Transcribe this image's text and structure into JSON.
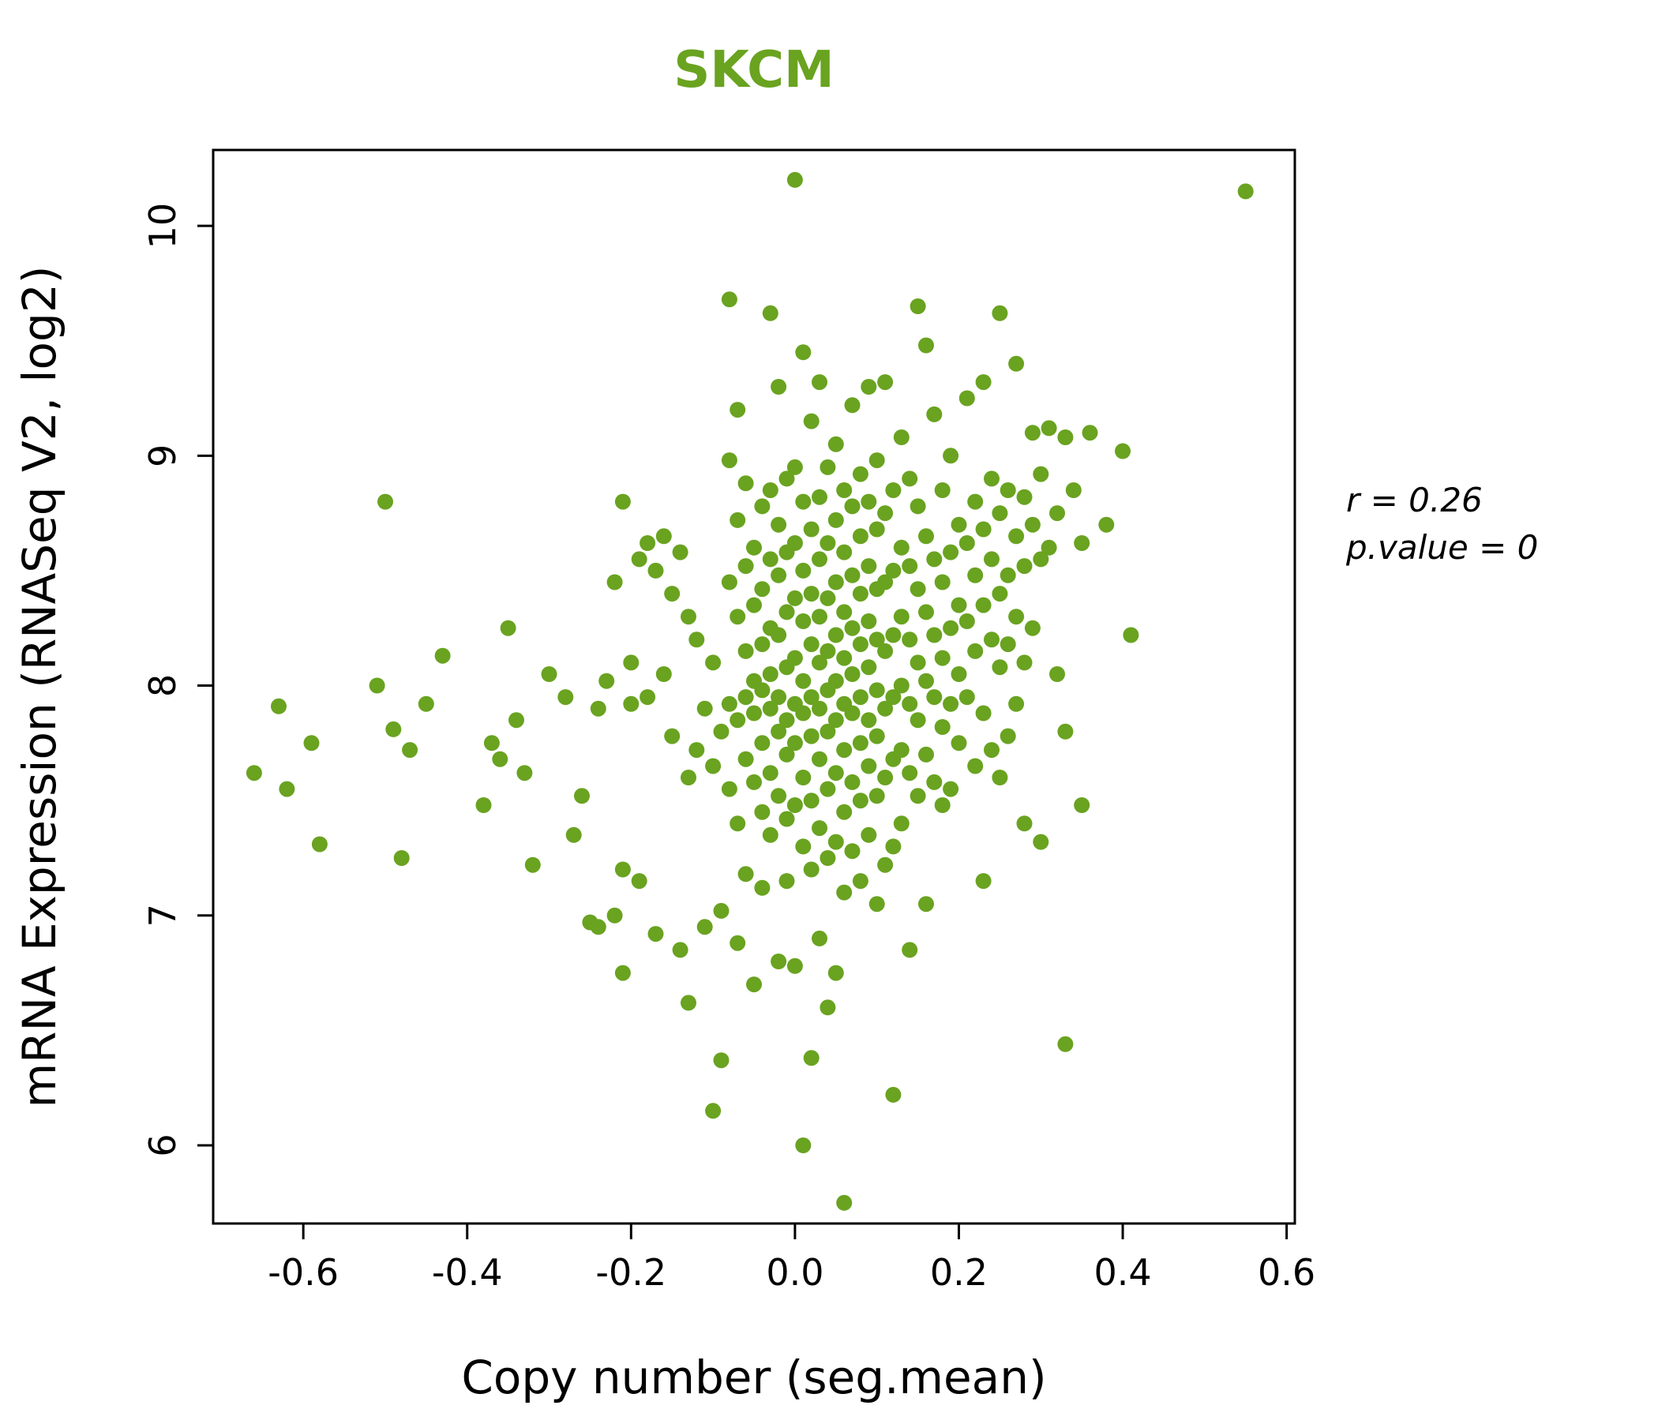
{
  "title": "SKCM",
  "annotation": {
    "line1": "r = 0.26",
    "line2": "p.value = 0"
  },
  "chart_data": {
    "type": "scatter",
    "title": "SKCM",
    "xlabel": "Copy number (seg.mean)",
    "ylabel": "mRNA Expression (RNASeq V2, log2)",
    "xlim": [
      -0.71,
      0.61
    ],
    "ylim": [
      5.66,
      10.33
    ],
    "xticks": [
      -0.6,
      -0.4,
      -0.2,
      0.0,
      0.2,
      0.4,
      0.6
    ],
    "xtick_labels": [
      "-0.6",
      "-0.4",
      "-0.2",
      "0.0",
      "0.2",
      "0.4",
      "0.6"
    ],
    "yticks": [
      6,
      7,
      8,
      9,
      10
    ],
    "ytick_labels": [
      "6",
      "7",
      "8",
      "9",
      "10"
    ],
    "point_color": "#69A320",
    "title_color": "#69A320",
    "grid": false,
    "legend": "none",
    "correlation": {
      "r": 0.26,
      "p_value": 0
    },
    "points": [
      [
        -0.66,
        7.62
      ],
      [
        -0.63,
        7.91
      ],
      [
        -0.62,
        7.55
      ],
      [
        -0.59,
        7.75
      ],
      [
        -0.58,
        7.31
      ],
      [
        -0.51,
        8.0
      ],
      [
        -0.5,
        8.8
      ],
      [
        -0.49,
        7.81
      ],
      [
        -0.48,
        7.25
      ],
      [
        -0.47,
        7.72
      ],
      [
        -0.45,
        7.92
      ],
      [
        -0.43,
        8.13
      ],
      [
        -0.38,
        7.48
      ],
      [
        -0.37,
        7.75
      ],
      [
        -0.36,
        7.68
      ],
      [
        -0.35,
        8.25
      ],
      [
        -0.34,
        7.85
      ],
      [
        -0.33,
        7.62
      ],
      [
        -0.32,
        7.22
      ],
      [
        -0.3,
        8.05
      ],
      [
        -0.28,
        7.95
      ],
      [
        -0.27,
        7.35
      ],
      [
        -0.26,
        7.52
      ],
      [
        -0.25,
        6.97
      ],
      [
        -0.24,
        7.9
      ],
      [
        -0.24,
        6.95
      ],
      [
        -0.23,
        8.02
      ],
      [
        -0.22,
        7.0
      ],
      [
        -0.22,
        8.45
      ],
      [
        -0.21,
        8.8
      ],
      [
        -0.21,
        7.2
      ],
      [
        -0.21,
        6.75
      ],
      [
        -0.2,
        8.1
      ],
      [
        -0.2,
        7.92
      ],
      [
        -0.19,
        8.55
      ],
      [
        -0.19,
        7.15
      ],
      [
        -0.18,
        8.62
      ],
      [
        -0.18,
        7.95
      ],
      [
        -0.17,
        8.5
      ],
      [
        -0.17,
        6.92
      ],
      [
        -0.16,
        8.65
      ],
      [
        -0.16,
        8.05
      ],
      [
        -0.15,
        8.4
      ],
      [
        -0.15,
        7.78
      ],
      [
        -0.14,
        8.58
      ],
      [
        -0.14,
        6.85
      ],
      [
        -0.13,
        8.3
      ],
      [
        -0.13,
        7.6
      ],
      [
        -0.13,
        6.62
      ],
      [
        -0.12,
        8.2
      ],
      [
        -0.12,
        7.72
      ],
      [
        -0.11,
        7.9
      ],
      [
        -0.11,
        6.95
      ],
      [
        -0.1,
        8.1
      ],
      [
        -0.1,
        7.65
      ],
      [
        -0.1,
        6.15
      ],
      [
        -0.09,
        7.8
      ],
      [
        -0.09,
        7.02
      ],
      [
        -0.09,
        6.37
      ],
      [
        -0.08,
        9.68
      ],
      [
        -0.08,
        8.98
      ],
      [
        -0.08,
        8.45
      ],
      [
        -0.08,
        7.92
      ],
      [
        -0.08,
        7.55
      ],
      [
        -0.07,
        9.2
      ],
      [
        -0.07,
        8.72
      ],
      [
        -0.07,
        8.3
      ],
      [
        -0.07,
        7.85
      ],
      [
        -0.07,
        7.4
      ],
      [
        -0.07,
        6.88
      ],
      [
        -0.06,
        8.88
      ],
      [
        -0.06,
        8.52
      ],
      [
        -0.06,
        8.15
      ],
      [
        -0.06,
        7.95
      ],
      [
        -0.06,
        7.68
      ],
      [
        -0.06,
        7.18
      ],
      [
        -0.05,
        8.6
      ],
      [
        -0.05,
        8.35
      ],
      [
        -0.05,
        8.02
      ],
      [
        -0.05,
        7.88
      ],
      [
        -0.05,
        7.58
      ],
      [
        -0.05,
        6.7
      ],
      [
        -0.04,
        8.78
      ],
      [
        -0.04,
        8.42
      ],
      [
        -0.04,
        8.18
      ],
      [
        -0.04,
        7.98
      ],
      [
        -0.04,
        7.75
      ],
      [
        -0.04,
        7.45
      ],
      [
        -0.04,
        7.12
      ],
      [
        -0.03,
        9.62
      ],
      [
        -0.03,
        8.85
      ],
      [
        -0.03,
        8.55
      ],
      [
        -0.03,
        8.25
      ],
      [
        -0.03,
        8.05
      ],
      [
        -0.03,
        7.9
      ],
      [
        -0.03,
        7.62
      ],
      [
        -0.03,
        7.35
      ],
      [
        -0.02,
        9.3
      ],
      [
        -0.02,
        8.7
      ],
      [
        -0.02,
        8.48
      ],
      [
        -0.02,
        8.22
      ],
      [
        -0.02,
        7.95
      ],
      [
        -0.02,
        7.8
      ],
      [
        -0.02,
        7.52
      ],
      [
        -0.02,
        6.8
      ],
      [
        -0.01,
        8.9
      ],
      [
        -0.01,
        8.58
      ],
      [
        -0.01,
        8.32
      ],
      [
        -0.01,
        8.08
      ],
      [
        -0.01,
        7.85
      ],
      [
        -0.01,
        7.7
      ],
      [
        -0.01,
        7.42
      ],
      [
        -0.01,
        7.15
      ],
      [
        0.0,
        10.2
      ],
      [
        0.0,
        8.95
      ],
      [
        0.0,
        8.62
      ],
      [
        0.0,
        8.38
      ],
      [
        0.0,
        8.12
      ],
      [
        0.0,
        7.92
      ],
      [
        0.0,
        7.75
      ],
      [
        0.0,
        7.48
      ],
      [
        0.0,
        6.78
      ],
      [
        0.01,
        9.45
      ],
      [
        0.01,
        8.8
      ],
      [
        0.01,
        8.5
      ],
      [
        0.01,
        8.28
      ],
      [
        0.01,
        8.02
      ],
      [
        0.01,
        7.88
      ],
      [
        0.01,
        7.6
      ],
      [
        0.01,
        7.3
      ],
      [
        0.01,
        6.0
      ],
      [
        0.02,
        9.15
      ],
      [
        0.02,
        8.68
      ],
      [
        0.02,
        8.4
      ],
      [
        0.02,
        8.18
      ],
      [
        0.02,
        7.95
      ],
      [
        0.02,
        7.78
      ],
      [
        0.02,
        7.5
      ],
      [
        0.02,
        7.2
      ],
      [
        0.02,
        6.38
      ],
      [
        0.03,
        9.32
      ],
      [
        0.03,
        8.82
      ],
      [
        0.03,
        8.55
      ],
      [
        0.03,
        8.3
      ],
      [
        0.03,
        8.1
      ],
      [
        0.03,
        7.9
      ],
      [
        0.03,
        7.68
      ],
      [
        0.03,
        7.38
      ],
      [
        0.03,
        6.9
      ],
      [
        0.04,
        8.95
      ],
      [
        0.04,
        8.62
      ],
      [
        0.04,
        8.38
      ],
      [
        0.04,
        8.15
      ],
      [
        0.04,
        7.98
      ],
      [
        0.04,
        7.8
      ],
      [
        0.04,
        7.55
      ],
      [
        0.04,
        7.25
      ],
      [
        0.04,
        6.6
      ],
      [
        0.05,
        9.05
      ],
      [
        0.05,
        8.72
      ],
      [
        0.05,
        8.45
      ],
      [
        0.05,
        8.22
      ],
      [
        0.05,
        8.02
      ],
      [
        0.05,
        7.85
      ],
      [
        0.05,
        7.62
      ],
      [
        0.05,
        7.32
      ],
      [
        0.05,
        6.75
      ],
      [
        0.06,
        8.85
      ],
      [
        0.06,
        8.58
      ],
      [
        0.06,
        8.32
      ],
      [
        0.06,
        8.12
      ],
      [
        0.06,
        7.92
      ],
      [
        0.06,
        7.72
      ],
      [
        0.06,
        7.45
      ],
      [
        0.06,
        7.1
      ],
      [
        0.06,
        5.75
      ],
      [
        0.07,
        9.22
      ],
      [
        0.07,
        8.78
      ],
      [
        0.07,
        8.48
      ],
      [
        0.07,
        8.25
      ],
      [
        0.07,
        8.05
      ],
      [
        0.07,
        7.88
      ],
      [
        0.07,
        7.58
      ],
      [
        0.07,
        7.28
      ],
      [
        0.08,
        8.92
      ],
      [
        0.08,
        8.65
      ],
      [
        0.08,
        8.4
      ],
      [
        0.08,
        8.18
      ],
      [
        0.08,
        7.95
      ],
      [
        0.08,
        7.75
      ],
      [
        0.08,
        7.5
      ],
      [
        0.08,
        7.15
      ],
      [
        0.09,
        9.3
      ],
      [
        0.09,
        8.8
      ],
      [
        0.09,
        8.52
      ],
      [
        0.09,
        8.28
      ],
      [
        0.09,
        8.08
      ],
      [
        0.09,
        7.85
      ],
      [
        0.09,
        7.65
      ],
      [
        0.09,
        7.35
      ],
      [
        0.1,
        8.98
      ],
      [
        0.1,
        8.68
      ],
      [
        0.1,
        8.42
      ],
      [
        0.1,
        8.2
      ],
      [
        0.1,
        7.98
      ],
      [
        0.1,
        7.78
      ],
      [
        0.1,
        7.52
      ],
      [
        0.1,
        7.05
      ],
      [
        0.11,
        9.32
      ],
      [
        0.11,
        8.75
      ],
      [
        0.11,
        8.45
      ],
      [
        0.11,
        8.15
      ],
      [
        0.11,
        7.9
      ],
      [
        0.11,
        7.6
      ],
      [
        0.11,
        7.22
      ],
      [
        0.12,
        8.85
      ],
      [
        0.12,
        8.5
      ],
      [
        0.12,
        8.22
      ],
      [
        0.12,
        7.95
      ],
      [
        0.12,
        7.68
      ],
      [
        0.12,
        7.3
      ],
      [
        0.12,
        6.22
      ],
      [
        0.13,
        9.08
      ],
      [
        0.13,
        8.6
      ],
      [
        0.13,
        8.3
      ],
      [
        0.13,
        8.0
      ],
      [
        0.13,
        7.72
      ],
      [
        0.13,
        7.4
      ],
      [
        0.14,
        8.9
      ],
      [
        0.14,
        8.52
      ],
      [
        0.14,
        8.2
      ],
      [
        0.14,
        7.92
      ],
      [
        0.14,
        7.62
      ],
      [
        0.14,
        6.85
      ],
      [
        0.15,
        9.65
      ],
      [
        0.15,
        8.78
      ],
      [
        0.15,
        8.42
      ],
      [
        0.15,
        8.1
      ],
      [
        0.15,
        7.85
      ],
      [
        0.15,
        7.52
      ],
      [
        0.16,
        9.48
      ],
      [
        0.16,
        8.65
      ],
      [
        0.16,
        8.32
      ],
      [
        0.16,
        8.02
      ],
      [
        0.16,
        7.7
      ],
      [
        0.16,
        7.05
      ],
      [
        0.17,
        9.18
      ],
      [
        0.17,
        8.55
      ],
      [
        0.17,
        8.22
      ],
      [
        0.17,
        7.95
      ],
      [
        0.17,
        7.58
      ],
      [
        0.18,
        8.85
      ],
      [
        0.18,
        8.45
      ],
      [
        0.18,
        8.12
      ],
      [
        0.18,
        7.82
      ],
      [
        0.18,
        7.48
      ],
      [
        0.19,
        9.0
      ],
      [
        0.19,
        8.58
      ],
      [
        0.19,
        8.25
      ],
      [
        0.19,
        7.92
      ],
      [
        0.19,
        7.55
      ],
      [
        0.2,
        8.7
      ],
      [
        0.2,
        8.35
      ],
      [
        0.2,
        8.05
      ],
      [
        0.2,
        7.75
      ],
      [
        0.21,
        9.25
      ],
      [
        0.21,
        8.62
      ],
      [
        0.21,
        8.28
      ],
      [
        0.21,
        7.95
      ],
      [
        0.22,
        8.8
      ],
      [
        0.22,
        8.48
      ],
      [
        0.22,
        8.15
      ],
      [
        0.22,
        7.65
      ],
      [
        0.23,
        9.32
      ],
      [
        0.23,
        8.68
      ],
      [
        0.23,
        8.35
      ],
      [
        0.23,
        7.88
      ],
      [
        0.23,
        7.15
      ],
      [
        0.24,
        8.9
      ],
      [
        0.24,
        8.55
      ],
      [
        0.24,
        8.2
      ],
      [
        0.24,
        7.72
      ],
      [
        0.25,
        9.62
      ],
      [
        0.25,
        8.75
      ],
      [
        0.25,
        8.4
      ],
      [
        0.25,
        8.08
      ],
      [
        0.25,
        7.6
      ],
      [
        0.26,
        8.85
      ],
      [
        0.26,
        8.48
      ],
      [
        0.26,
        8.18
      ],
      [
        0.26,
        7.78
      ],
      [
        0.27,
        9.4
      ],
      [
        0.27,
        8.65
      ],
      [
        0.27,
        8.3
      ],
      [
        0.27,
        7.92
      ],
      [
        0.28,
        8.82
      ],
      [
        0.28,
        8.52
      ],
      [
        0.28,
        8.1
      ],
      [
        0.28,
        7.4
      ],
      [
        0.29,
        9.1
      ],
      [
        0.29,
        8.7
      ],
      [
        0.29,
        8.25
      ],
      [
        0.3,
        8.92
      ],
      [
        0.3,
        8.55
      ],
      [
        0.3,
        7.32
      ],
      [
        0.31,
        9.12
      ],
      [
        0.31,
        8.6
      ],
      [
        0.32,
        8.75
      ],
      [
        0.32,
        8.05
      ],
      [
        0.33,
        9.08
      ],
      [
        0.33,
        7.8
      ],
      [
        0.33,
        6.44
      ],
      [
        0.34,
        8.85
      ],
      [
        0.35,
        8.62
      ],
      [
        0.35,
        7.48
      ],
      [
        0.36,
        9.1
      ],
      [
        0.38,
        8.7
      ],
      [
        0.4,
        9.02
      ],
      [
        0.41,
        8.22
      ],
      [
        0.55,
        10.15
      ]
    ]
  }
}
